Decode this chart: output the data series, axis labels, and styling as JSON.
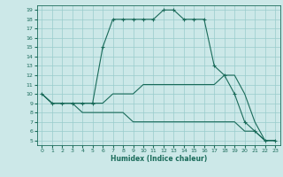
{
  "xlabel": "Humidex (Indice chaleur)",
  "xlim": [
    -0.5,
    23.5
  ],
  "ylim": [
    4.5,
    19.5
  ],
  "yticks": [
    5,
    6,
    7,
    8,
    9,
    10,
    11,
    12,
    13,
    14,
    15,
    16,
    17,
    18,
    19
  ],
  "xticks": [
    0,
    1,
    2,
    3,
    4,
    5,
    6,
    7,
    8,
    9,
    10,
    11,
    12,
    13,
    14,
    15,
    16,
    17,
    18,
    19,
    20,
    21,
    22,
    23
  ],
  "line_color": "#1a6b5a",
  "bg_color": "#cce8e8",
  "grid_color": "#99cccc",
  "line1_x": [
    0,
    1,
    2,
    3,
    4,
    5,
    6,
    7,
    8,
    9,
    10,
    11,
    12,
    13,
    14,
    15,
    16,
    17,
    18,
    19,
    20,
    21,
    22,
    23
  ],
  "line1_y": [
    10,
    9,
    9,
    9,
    9,
    9,
    15,
    18,
    18,
    18,
    18,
    18,
    19,
    19,
    18,
    18,
    18,
    13,
    12,
    10,
    7,
    6,
    5,
    5
  ],
  "line2_x": [
    0,
    1,
    2,
    3,
    4,
    5,
    6,
    7,
    8,
    9,
    10,
    11,
    12,
    13,
    14,
    15,
    16,
    17,
    18,
    19,
    20,
    21,
    22,
    23
  ],
  "line2_y": [
    10,
    9,
    9,
    9,
    9,
    9,
    9,
    10,
    10,
    10,
    11,
    11,
    11,
    11,
    11,
    11,
    11,
    11,
    12,
    12,
    10,
    7,
    5,
    5
  ],
  "line3_x": [
    0,
    1,
    2,
    3,
    4,
    5,
    6,
    7,
    8,
    9,
    10,
    11,
    12,
    13,
    14,
    15,
    16,
    17,
    18,
    19,
    20,
    21,
    22,
    23
  ],
  "line3_y": [
    10,
    9,
    9,
    9,
    8,
    8,
    8,
    8,
    8,
    7,
    7,
    7,
    7,
    7,
    7,
    7,
    7,
    7,
    7,
    7,
    6,
    6,
    5,
    5
  ]
}
